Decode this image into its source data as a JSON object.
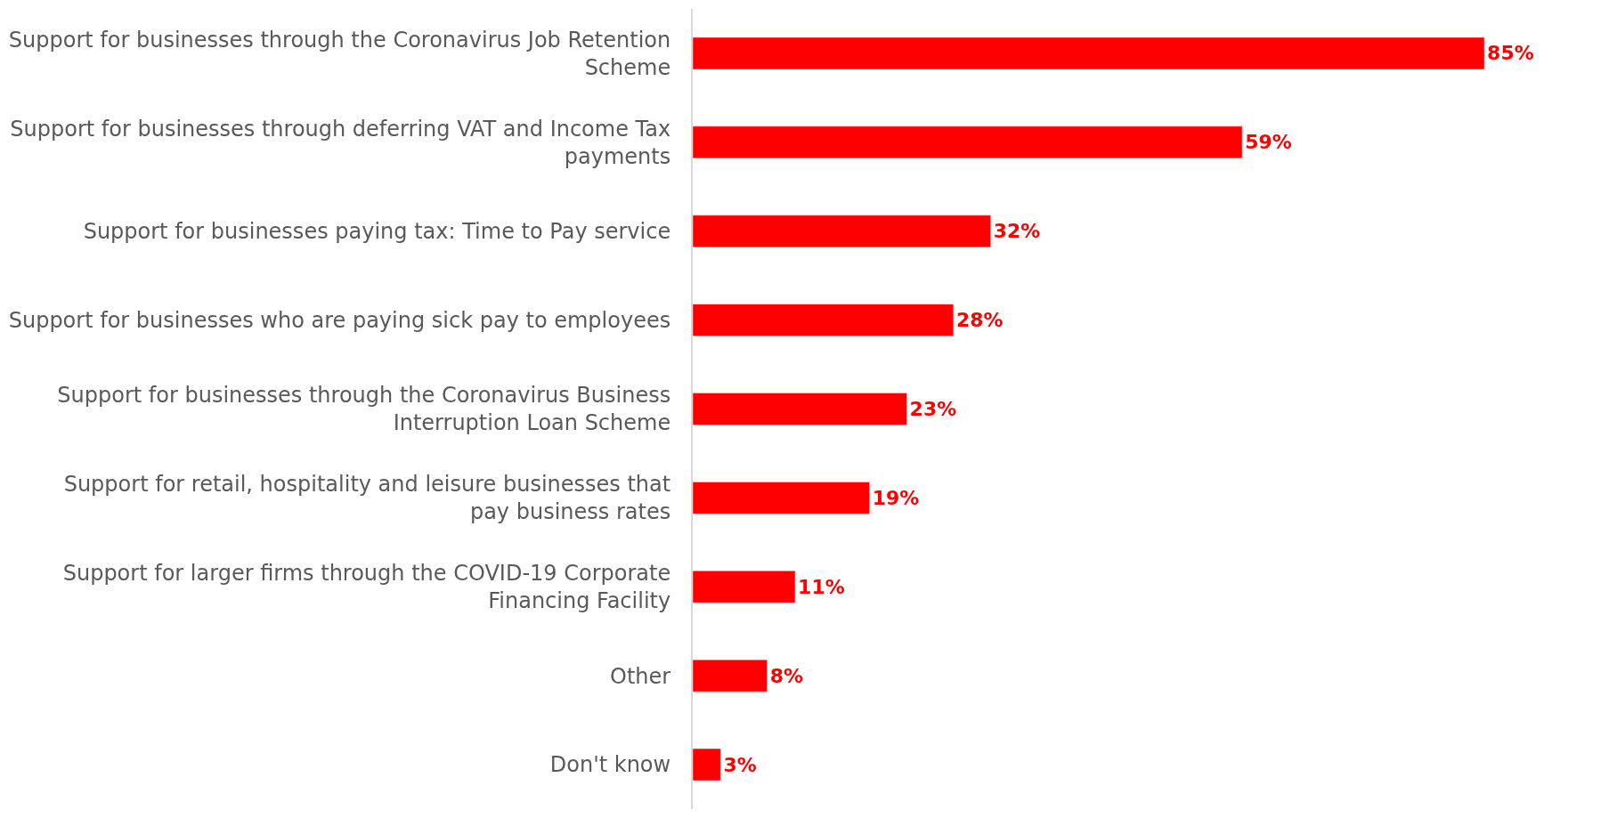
{
  "chart_data": {
    "type": "bar",
    "orientation": "horizontal",
    "categories": [
      "Support for businesses through the Coronavirus Job Retention Scheme",
      "Support for businesses through deferring VAT and Income Tax payments",
      "Support for businesses paying tax: Time to Pay service",
      "Support for businesses who are paying sick pay to employees",
      "Support for businesses through the Coronavirus Business Interruption Loan Scheme",
      "Support for retail, hospitality and leisure businesses that pay business rates",
      "Support for larger firms through the COVID-19 Corporate Financing Facility",
      "Other",
      "Don't know"
    ],
    "values": [
      85,
      59,
      32,
      28,
      23,
      19,
      11,
      8,
      3
    ],
    "value_labels": [
      "85%",
      "59%",
      "32%",
      "28%",
      "23%",
      "19%",
      "11%",
      "8%",
      "3%"
    ],
    "color": "#ff0000",
    "tick_labels": "y",
    "legend": false
  }
}
